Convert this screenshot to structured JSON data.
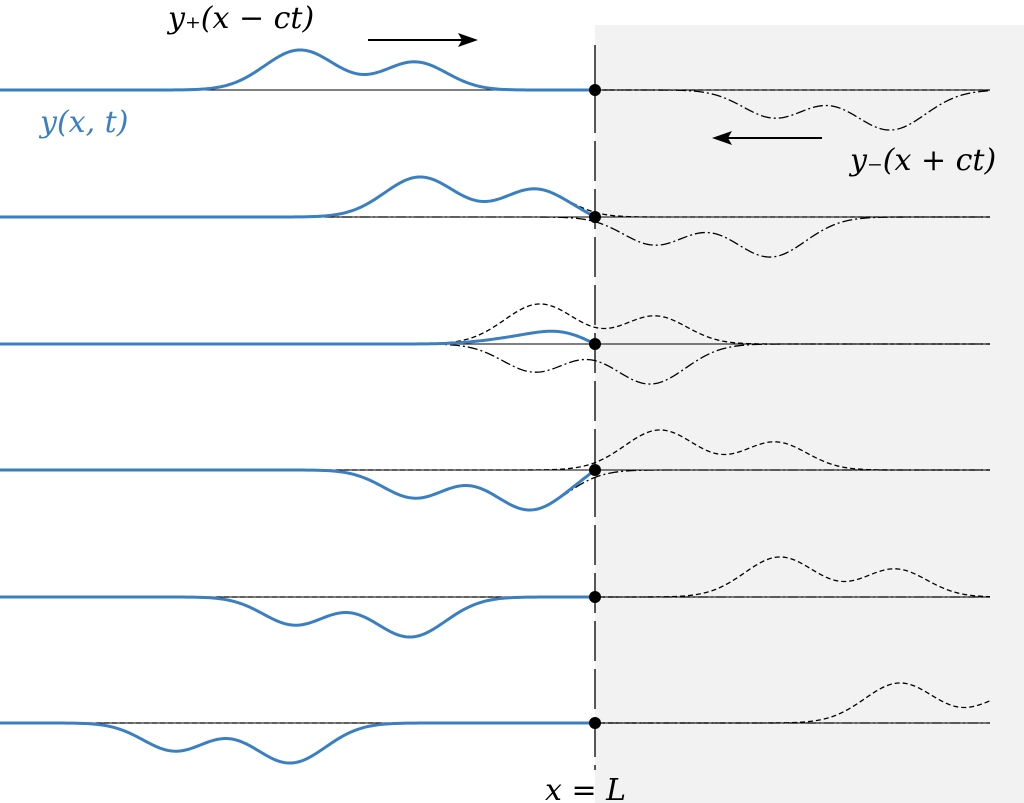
{
  "labels": {
    "incoming": "y₊(x − ct)",
    "total": "y(x, t)",
    "reflected": "y₋(x + ct)",
    "boundary": "x = L"
  }
}
